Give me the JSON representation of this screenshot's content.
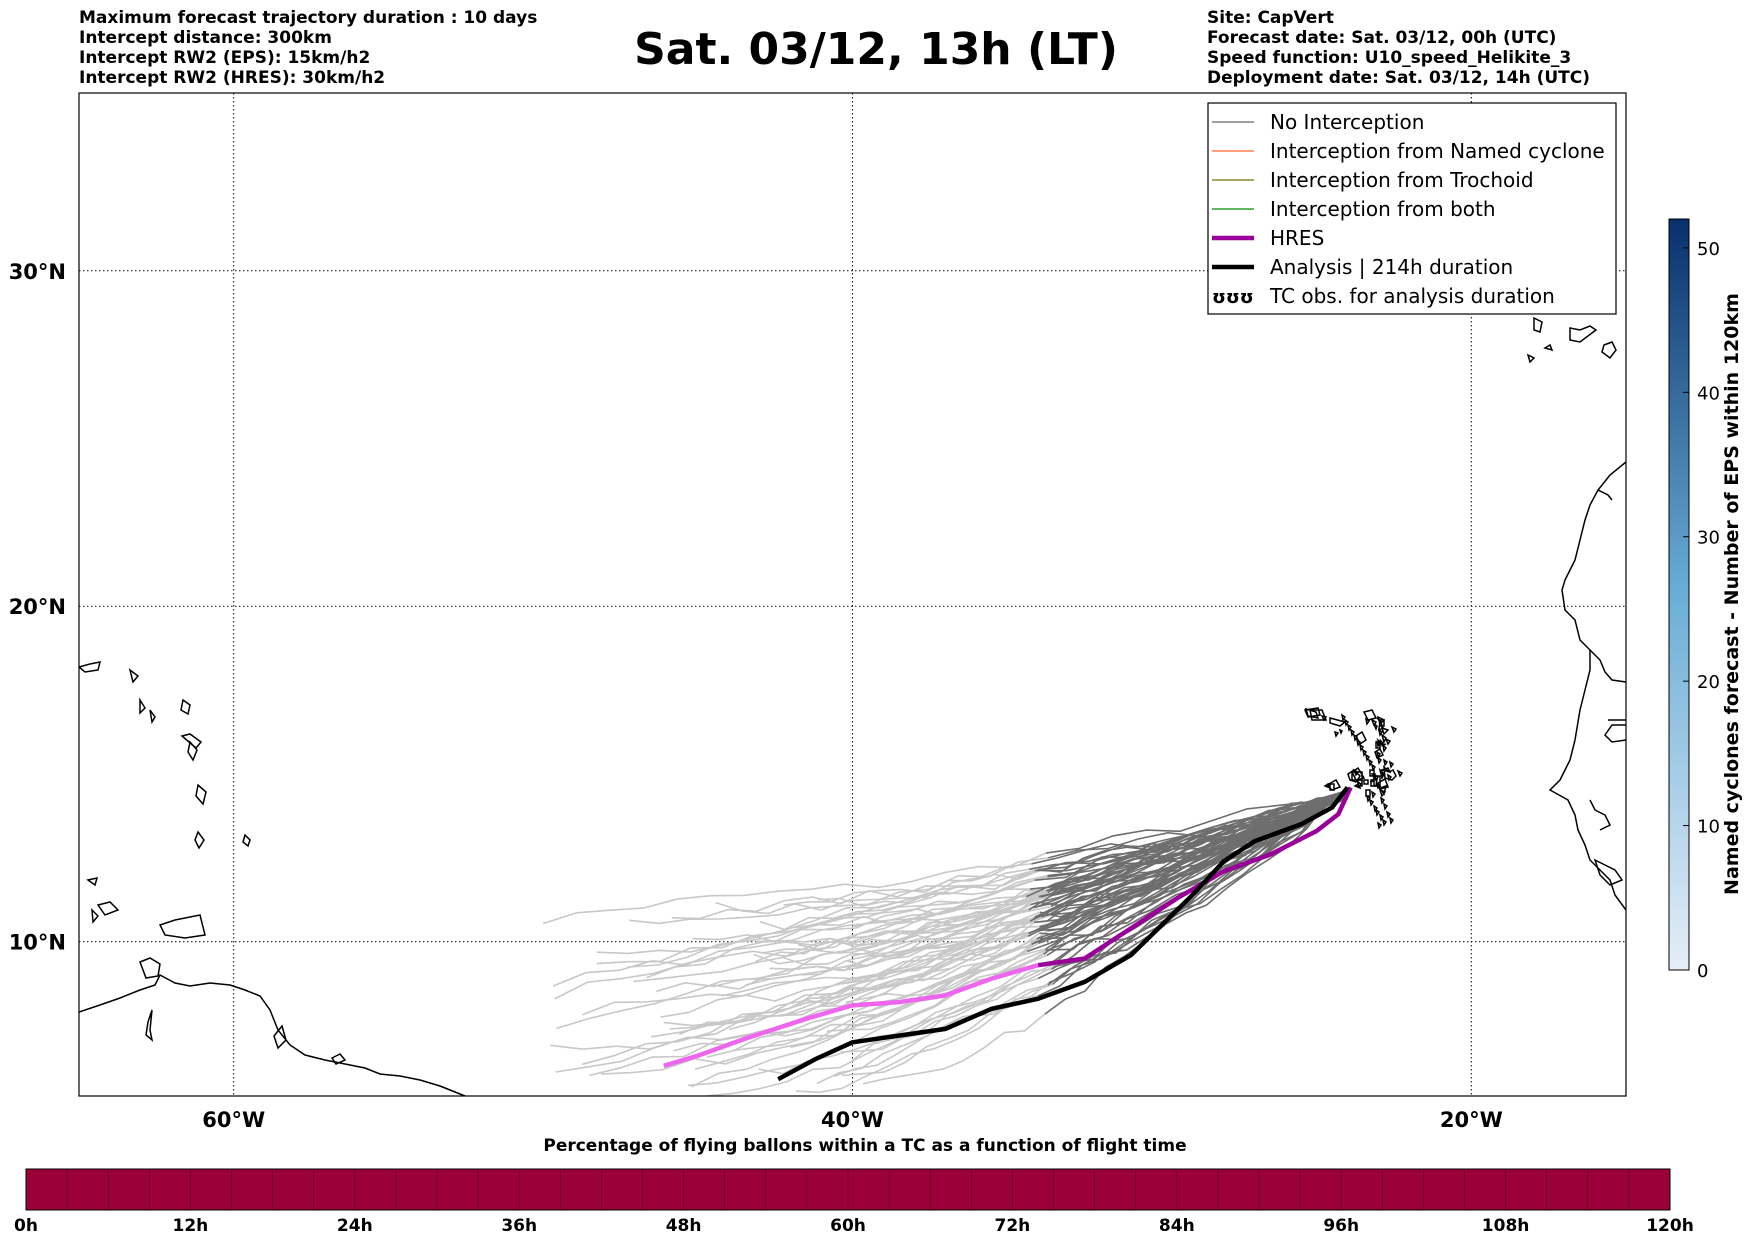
{
  "header": {
    "left": [
      "Maximum forecast trajectory duration : 10 days",
      "Intercept distance: 300km",
      "Intercept RW2 (EPS):  15km/h2",
      "Intercept RW2 (HRES): 30km/h2"
    ],
    "right": [
      "Site: CapVert",
      "Forecast date: Sat. 03/12, 00h (UTC)",
      "Speed function: U10_speed_Helikite_3",
      "Deployment date: Sat. 03/12, 14h (UTC)"
    ],
    "title": "Sat. 03/12, 13h (LT)"
  },
  "map": {
    "lat_ticks": [
      "30°N",
      "20°N",
      "10°N"
    ],
    "lon_ticks": [
      "60°W",
      "40°W",
      "20°W"
    ],
    "lat_values": [
      30,
      20,
      10
    ],
    "lon_values": [
      -60,
      -40,
      -20
    ],
    "extent": {
      "lon": [
        -65,
        -15
      ],
      "lat": [
        5.4,
        35.3
      ]
    }
  },
  "legend": {
    "items": [
      {
        "label": "No Interception",
        "color": "#808080",
        "style": "thin"
      },
      {
        "label": "Interception from Named cyclone",
        "color": "#ff7f50",
        "style": "thin"
      },
      {
        "label": "Interception from Trochoid",
        "color": "#8b8b2e",
        "style": "thin"
      },
      {
        "label": "Interception from both",
        "color": "#2ca02c",
        "style": "thin"
      },
      {
        "label": "HRES",
        "color": "#990099",
        "style": "thick"
      },
      {
        "label": "Analysis | 214h duration",
        "color": "#000000",
        "style": "thick"
      },
      {
        "label": "TC obs. for analysis duration",
        "color": "#000000",
        "style": "symbol",
        "symbol": "ʊʊʊ"
      }
    ]
  },
  "colorbar_right": {
    "label": "Named cyclones forecast - Number of EPS within 120km",
    "ticks": [
      "0",
      "10",
      "20",
      "30",
      "40",
      "50"
    ],
    "tick_values": [
      0,
      10,
      20,
      30,
      40,
      50
    ],
    "max": 52,
    "color_low": "#e6eef8",
    "color_high": "#08306b"
  },
  "colorbar_bottom": {
    "title": "Percentage of flying ballons within a TC as a function of flight time",
    "ticks": [
      "0h",
      "12h",
      "24h",
      "36h",
      "48h",
      "60h",
      "72h",
      "84h",
      "96h",
      "108h",
      "120h"
    ],
    "fill_color": "#9b0038"
  },
  "tracks": {
    "hres": [
      [
        -46.1,
        6.3
      ],
      [
        -45,
        6.6
      ],
      [
        -43.5,
        7.1
      ],
      [
        -41.5,
        7.7
      ],
      [
        -40,
        8.1
      ],
      [
        -38.5,
        8.2
      ],
      [
        -37,
        8.4
      ],
      [
        -35.5,
        8.9
      ],
      [
        -34,
        9.3
      ],
      [
        -32.5,
        9.5
      ],
      [
        -31,
        10.4
      ],
      [
        -29.5,
        11.3
      ],
      [
        -28,
        12.1
      ],
      [
        -26.5,
        12.6
      ],
      [
        -25,
        13.3
      ],
      [
        -24.3,
        13.8
      ],
      [
        -23.9,
        14.6
      ]
    ],
    "analysis": [
      [
        -42.4,
        5.9
      ],
      [
        -41.2,
        6.5
      ],
      [
        -40,
        7
      ],
      [
        -38.5,
        7.2
      ],
      [
        -37,
        7.4
      ],
      [
        -35.5,
        8
      ],
      [
        -34,
        8.3
      ],
      [
        -32.5,
        8.8
      ],
      [
        -31,
        9.6
      ],
      [
        -30,
        10.5
      ],
      [
        -29,
        11.4
      ],
      [
        -28,
        12.4
      ],
      [
        -27,
        13
      ],
      [
        -25.5,
        13.5
      ],
      [
        -24.5,
        14
      ],
      [
        -24,
        14.6
      ]
    ]
  }
}
